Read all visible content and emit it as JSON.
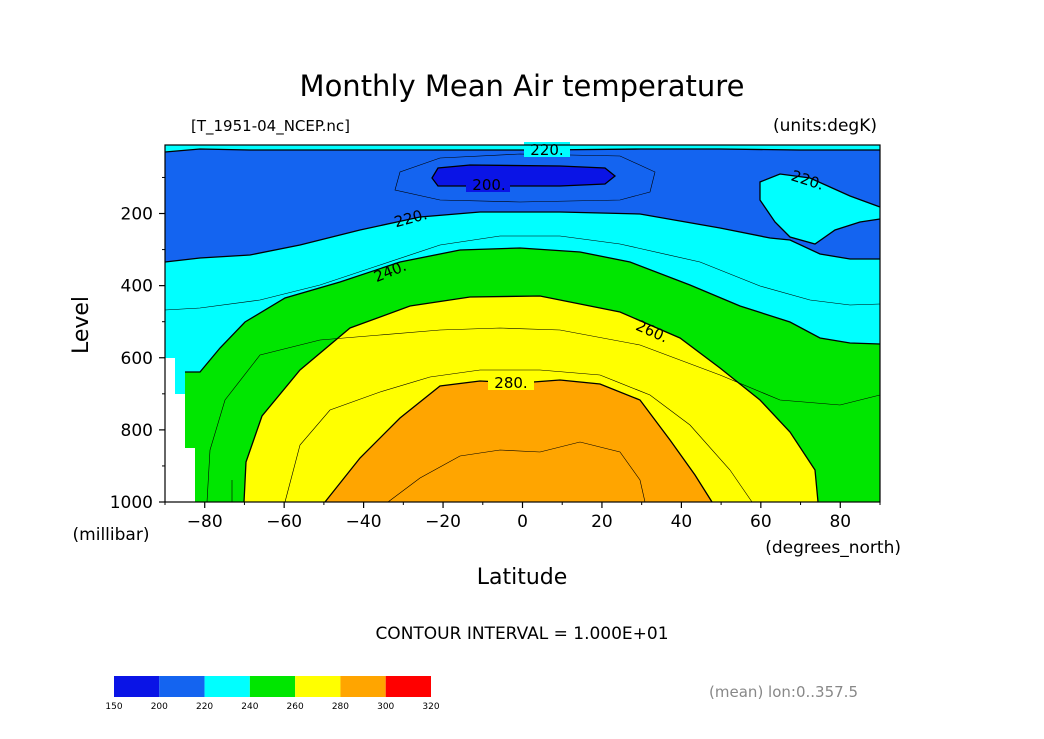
{
  "chart_data": {
    "type": "heatmap",
    "title": "Monthly Mean Air temperature",
    "file_label": "[T_1951-04_NCEP.nc]",
    "units_label": "(units:degK)",
    "xlabel": "Latitude",
    "x_unit": "(degrees_north)",
    "ylabel": "Level",
    "y_unit": "(millibar)",
    "xlim": [
      -90,
      90
    ],
    "ylim": [
      1000,
      10
    ],
    "x_ticks": [
      -80,
      -60,
      -40,
      -20,
      0,
      20,
      40,
      60,
      80
    ],
    "y_ticks": [
      200,
      400,
      600,
      800,
      1000
    ],
    "contour_interval_text": "CONTOUR INTERVAL = 1.000E+01",
    "footnote": "(mean) lon:0..357.5",
    "contour_labels": [
      "220.",
      "200.",
      "220.",
      "220.",
      "240.",
      "260.",
      "280."
    ],
    "colorbar": {
      "bounds": [
        150,
        200,
        220,
        240,
        260,
        280,
        300,
        320
      ],
      "tick_labels": [
        "150",
        "200",
        "220",
        "240",
        "260",
        "280",
        "300",
        "320"
      ],
      "colors": [
        "#0a14e6",
        "#1464f0",
        "#00ffff",
        "#00e600",
        "#ffff00",
        "#ffa500",
        "#ff0000"
      ]
    },
    "bands": [
      {
        "range": "<220",
        "color": "#1464f0"
      },
      {
        "range": "220-240",
        "color": "#00ffff"
      },
      {
        "range": "240-260",
        "color": "#00e600"
      },
      {
        "range": "260-280",
        "color": "#ffff00"
      },
      {
        "range": "280-300",
        "color": "#ffa500"
      },
      {
        "range": "<200",
        "color": "#0a14e6"
      }
    ]
  }
}
